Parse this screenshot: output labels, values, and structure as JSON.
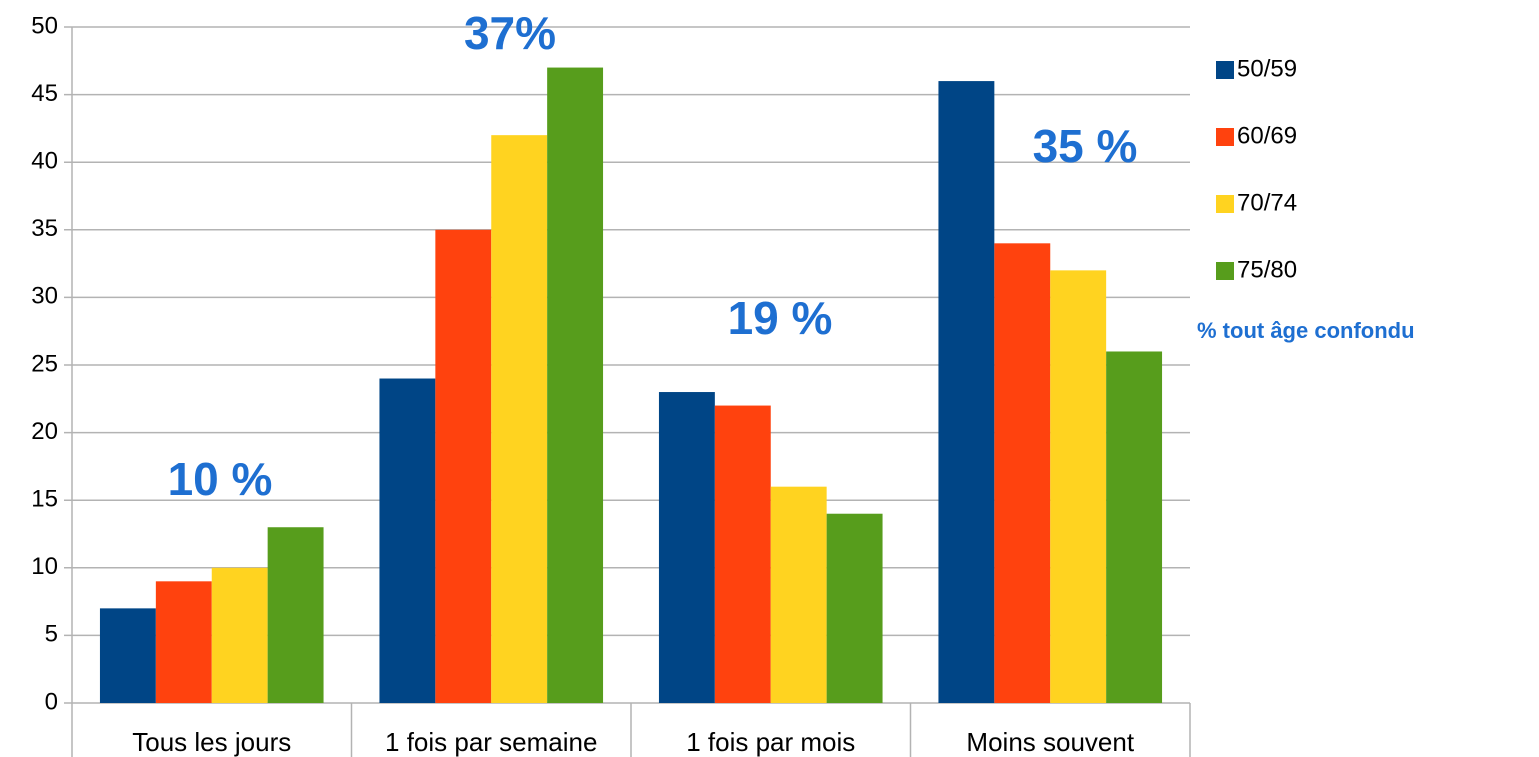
{
  "chart_data": {
    "type": "bar",
    "categories": [
      "Tous les jours",
      "1 fois par semaine",
      "1 fois par mois",
      "Moins souvent"
    ],
    "series": [
      {
        "name": "50/59",
        "color": "#004586",
        "values": [
          7,
          24,
          23,
          46
        ]
      },
      {
        "name": "60/69",
        "color": "#ff420e",
        "values": [
          9,
          35,
          22,
          34
        ]
      },
      {
        "name": "70/74",
        "color": "#ffd320",
        "values": [
          10,
          42,
          16,
          32
        ]
      },
      {
        "name": "75/80",
        "color": "#579d1c",
        "values": [
          13,
          47,
          14,
          26
        ]
      }
    ],
    "annotations": [
      "10 %",
      "37%",
      "19 %",
      "35 %"
    ],
    "note": "% tout âge confondu",
    "ylim": [
      0,
      50
    ],
    "yticks": [
      0,
      5,
      10,
      15,
      20,
      25,
      30,
      35,
      40,
      45,
      50
    ],
    "grid": true,
    "legend": "right"
  }
}
